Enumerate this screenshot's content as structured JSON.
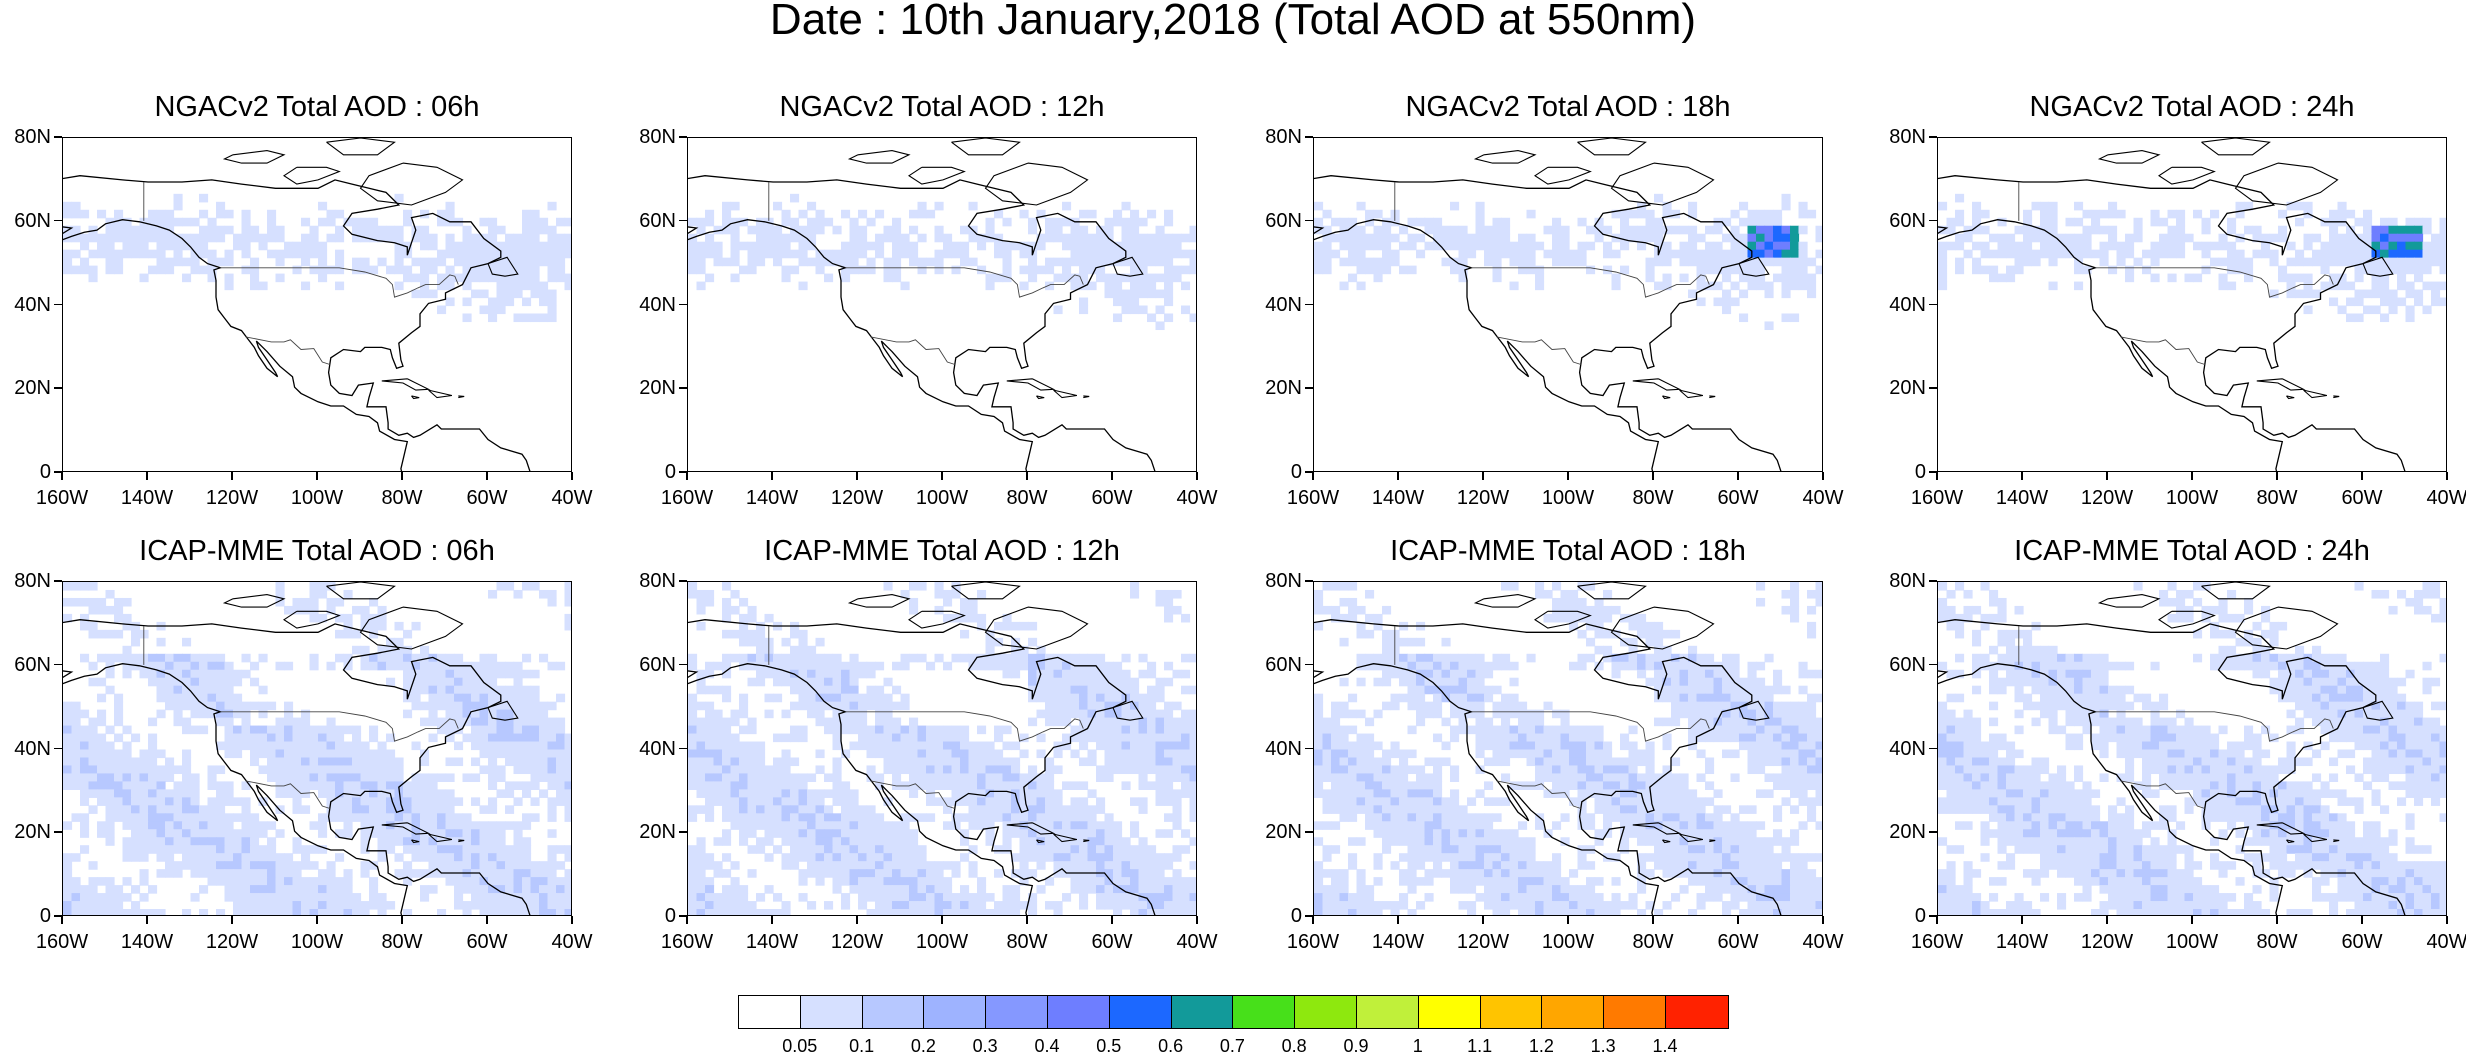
{
  "title": "Date : 10th January,2018 (Total AOD at 550nm)",
  "lat_labels": [
    "80N",
    "60N",
    "40N",
    "20N",
    "0"
  ],
  "lon_labels": [
    "160W",
    "140W",
    "120W",
    "100W",
    "80W",
    "60W",
    "40W"
  ],
  "map_extent": {
    "lon": [
      -160,
      -40
    ],
    "lat": [
      0,
      80
    ]
  },
  "panels": [
    {
      "title": "NGACv2 Total AOD : 06h",
      "model": "NGACv2",
      "hour": "06h"
    },
    {
      "title": "NGACv2 Total AOD : 12h",
      "model": "NGACv2",
      "hour": "12h"
    },
    {
      "title": "NGACv2 Total AOD : 18h",
      "model": "NGACv2",
      "hour": "18h"
    },
    {
      "title": "NGACv2 Total AOD : 24h",
      "model": "NGACv2",
      "hour": "24h"
    },
    {
      "title": "ICAP-MME Total AOD : 06h",
      "model": "ICAP-MME",
      "hour": "06h"
    },
    {
      "title": "ICAP-MME Total AOD : 12h",
      "model": "ICAP-MME",
      "hour": "12h"
    },
    {
      "title": "ICAP-MME Total AOD : 18h",
      "model": "ICAP-MME",
      "hour": "18h"
    },
    {
      "title": "ICAP-MME Total AOD : 24h",
      "model": "ICAP-MME",
      "hour": "24h"
    }
  ],
  "colorbar": {
    "labels": [
      "0.05",
      "0.1",
      "0.2",
      "0.3",
      "0.4",
      "0.5",
      "0.6",
      "0.7",
      "0.8",
      "0.9",
      "1",
      "1.1",
      "1.2",
      "1.3",
      "1.4"
    ],
    "colors": [
      "#ffffff",
      "#d6e0ff",
      "#b7c8ff",
      "#9eb3ff",
      "#8598ff",
      "#6e7eff",
      "#1c68ff",
      "#129a9a",
      "#47e01a",
      "#8ee80e",
      "#c0f03a",
      "#ffff00",
      "#ffc400",
      "#ffa600",
      "#ff7a00",
      "#ff2200"
    ]
  }
}
